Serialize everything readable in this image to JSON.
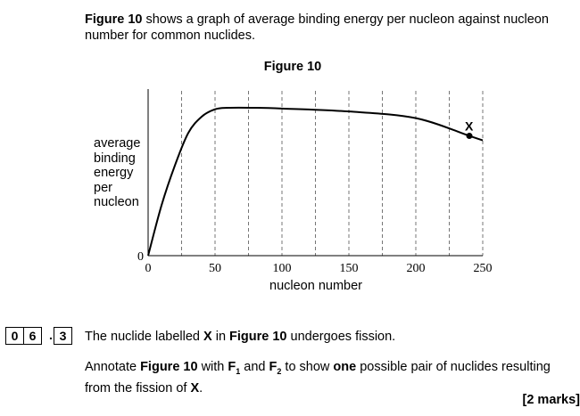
{
  "intro": {
    "fig_ref": "Figure 10",
    "rest": " shows a graph of average binding energy per nucleon against nucleon number for common nuclides."
  },
  "figure_title": "Figure 10",
  "chart_data": {
    "type": "line",
    "xlabel": "nucleon number",
    "ylabel_lines": [
      "average",
      "binding",
      "energy",
      "per",
      "nucleon"
    ],
    "x_ticks": [
      0,
      50,
      100,
      150,
      200,
      250
    ],
    "y_ticks": [
      0
    ],
    "xlim": [
      0,
      250
    ],
    "ylim": [
      0,
      1
    ],
    "grid": "vertical dashed lines every 25",
    "point_label": "X",
    "point": {
      "x": 240,
      "y": 0.81
    },
    "curve": [
      {
        "x": 0,
        "y": 0
      },
      {
        "x": 10,
        "y": 0.34
      },
      {
        "x": 20,
        "y": 0.61
      },
      {
        "x": 30,
        "y": 0.83
      },
      {
        "x": 40,
        "y": 0.94
      },
      {
        "x": 50,
        "y": 0.99
      },
      {
        "x": 60,
        "y": 1.0
      },
      {
        "x": 80,
        "y": 1.0
      },
      {
        "x": 100,
        "y": 0.995
      },
      {
        "x": 150,
        "y": 0.975
      },
      {
        "x": 200,
        "y": 0.93
      },
      {
        "x": 240,
        "y": 0.81
      },
      {
        "x": 250,
        "y": 0.78
      }
    ]
  },
  "question": {
    "num_digits": [
      "0",
      "6",
      "3"
    ],
    "dot": ".",
    "text_pre": "The nuclide labelled ",
    "x_bold": "X",
    "text_mid": " in ",
    "fig_bold": "Figure 10",
    "text_post": " undergoes fission."
  },
  "annotate": {
    "pre": "Annotate ",
    "fig": "Figure 10",
    "mid1": " with ",
    "f": "F",
    "sub1": "1",
    "and": " and ",
    "sub2": "2",
    "mid2": " to show ",
    "one": "one",
    "mid3": " possible pair of nuclides resulting from the fission of ",
    "x": "X",
    "end": "."
  },
  "marks": "[2 marks]"
}
